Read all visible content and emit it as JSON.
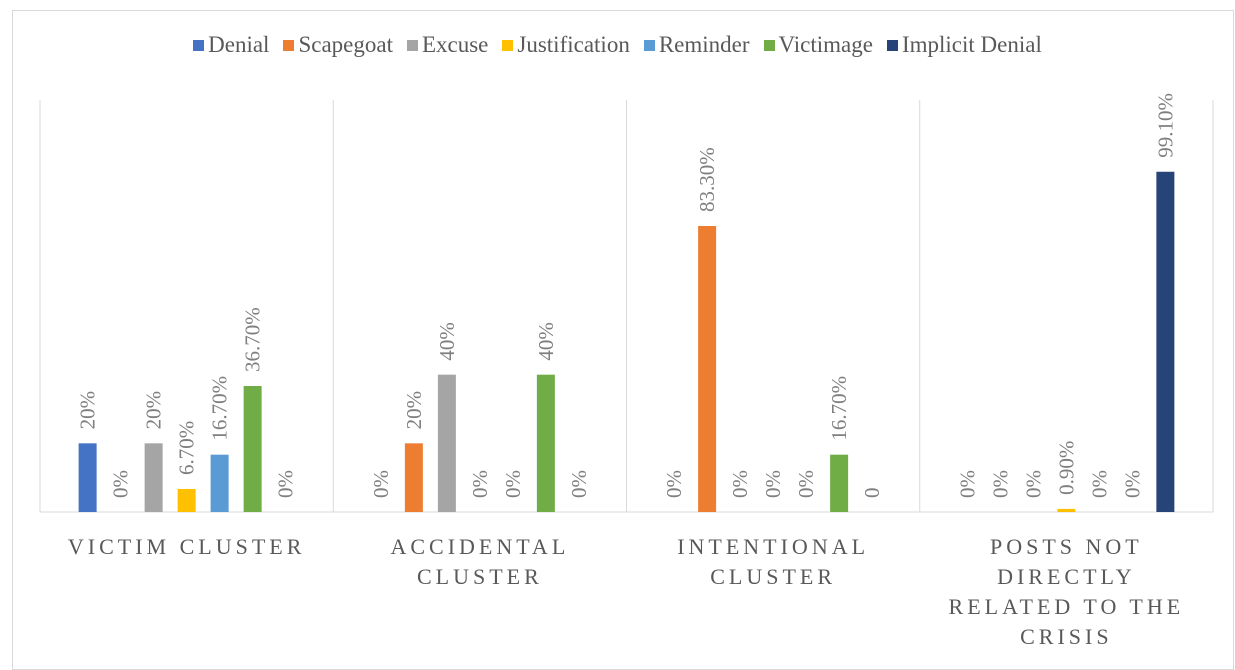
{
  "chart_data": {
    "type": "bar",
    "categories": [
      "VICTIM CLUSTER",
      "ACCIDENTAL CLUSTER",
      "INTENTIONAL CLUSTER",
      "POSTS NOT DIRECTLY RELATED TO THE CRISIS"
    ],
    "ylim": [
      0,
      120
    ],
    "series": [
      {
        "name": "Denial",
        "color": "#4472c4",
        "values": [
          20,
          0,
          0,
          0
        ],
        "value_labels": [
          "20%",
          "0%",
          "0%",
          "0%"
        ]
      },
      {
        "name": "Scapegoat",
        "color": "#ed7d31",
        "values": [
          0,
          20,
          83.3,
          0
        ],
        "value_labels": [
          "0%",
          "20%",
          "83.30%",
          "0%"
        ]
      },
      {
        "name": "Excuse",
        "color": "#a5a5a5",
        "values": [
          20,
          40,
          0,
          0
        ],
        "value_labels": [
          "20%",
          "40%",
          "0%",
          "0%"
        ]
      },
      {
        "name": "Justification",
        "color": "#ffc000",
        "values": [
          6.7,
          0,
          0,
          0.9
        ],
        "value_labels": [
          "6.70%",
          "0%",
          "0%",
          "0.90%"
        ]
      },
      {
        "name": "Reminder",
        "color": "#5b9bd5",
        "values": [
          16.7,
          0,
          0,
          0
        ],
        "value_labels": [
          "16.70%",
          "0%",
          "0%",
          "0%"
        ]
      },
      {
        "name": "Victimage",
        "color": "#70ad47",
        "values": [
          36.7,
          40,
          16.7,
          0
        ],
        "value_labels": [
          "36.70%",
          "40%",
          "16.70%",
          "0%"
        ]
      },
      {
        "name": "Implicit Denial",
        "color": "#264478",
        "values": [
          0,
          0,
          0,
          99.1
        ],
        "value_labels": [
          "0%",
          "0%",
          "0",
          "99.10%"
        ]
      }
    ]
  }
}
